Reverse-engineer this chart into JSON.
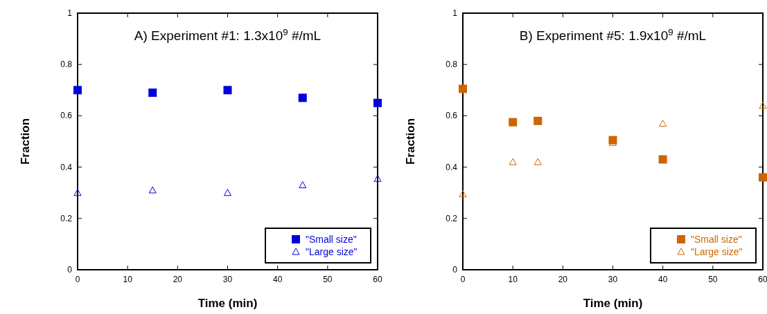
{
  "chart_data": [
    {
      "type": "scatter",
      "title": "A) Experiment #1: 1.3x10$^{9}$ #/mL",
      "xlabel": "Time (min)",
      "ylabel": "Fraction",
      "x": [
        0,
        15,
        30,
        45,
        60
      ],
      "series": [
        {
          "name": "\"Small size\"",
          "color": "#0000dd",
          "marker": "square",
          "values": [
            0.7,
            0.69,
            0.7,
            0.67,
            0.65
          ]
        },
        {
          "name": "\"Large size\"",
          "color": "#0000dd",
          "marker": "triangle",
          "values": [
            0.3,
            0.31,
            0.3,
            0.33,
            0.355
          ]
        }
      ],
      "xlim": [
        0,
        60
      ],
      "xticks": [
        0,
        10,
        20,
        30,
        40,
        50,
        60
      ],
      "ylim": [
        0,
        1
      ],
      "yticks": [
        0,
        0.2,
        0.4,
        0.6,
        0.8,
        1
      ],
      "legend": "bottom right"
    },
    {
      "type": "scatter",
      "title": "B) Experiment #5: 1.9x10$^{9}$ #/mL",
      "xlabel": "Time (min)",
      "ylabel": "Fraction",
      "x": [
        0,
        10,
        15,
        30,
        40,
        60
      ],
      "series": [
        {
          "name": "\"Small size\"",
          "color": "#cc6600",
          "marker": "square",
          "values": [
            0.705,
            0.575,
            0.58,
            0.505,
            0.43,
            0.36
          ]
        },
        {
          "name": "\"Large size\"",
          "color": "#cc6600",
          "marker": "triangle",
          "values": [
            0.295,
            0.42,
            0.42,
            0.495,
            0.57,
            0.64
          ]
        }
      ],
      "xlim": [
        0,
        60
      ],
      "xticks": [
        0,
        10,
        20,
        30,
        40,
        50,
        60
      ],
      "ylim": [
        0,
        1
      ],
      "yticks": [
        0,
        0.2,
        0.4,
        0.6,
        0.8,
        1
      ],
      "legend": "bottom right"
    }
  ]
}
